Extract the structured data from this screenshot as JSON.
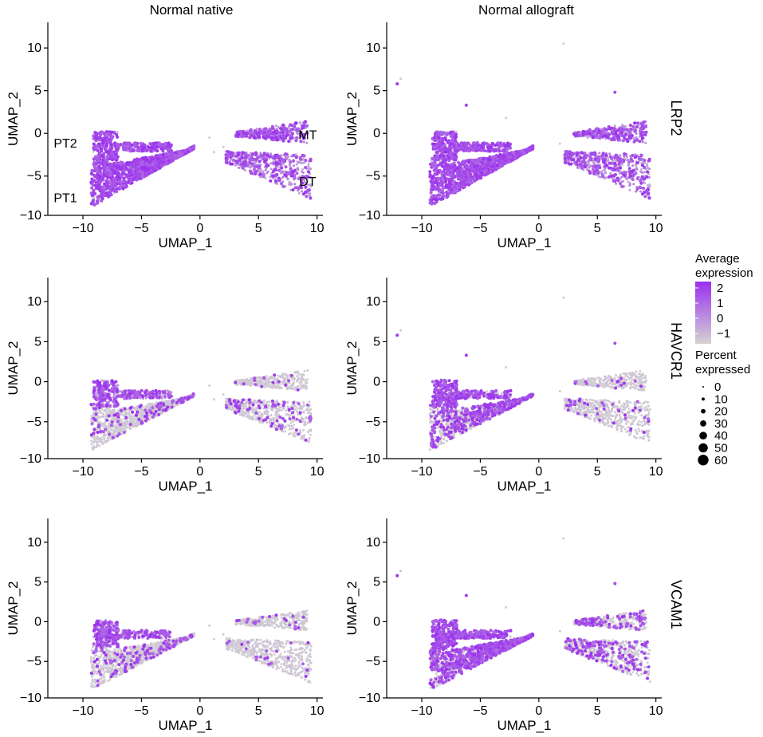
{
  "chart_data": {
    "type": "scatter",
    "kind": "UMAP feature plot grid",
    "columns": [
      "Normal native",
      "Normal allograft"
    ],
    "rows": [
      "LRP2",
      "HAVCR1",
      "VCAM1"
    ],
    "xlabel": "UMAP_1",
    "ylabel": "UMAP_2",
    "xlim": [
      -13,
      10.5
    ],
    "ylim": [
      -9.6,
      13
    ],
    "xticks": [
      -10,
      -5,
      0,
      5,
      10
    ],
    "yticks": [
      -10,
      -5,
      0,
      5,
      10
    ],
    "x_tick_labels": [
      "−10",
      "−5",
      "0",
      "5",
      "10"
    ],
    "y_tick_labels": [
      "−10",
      "−5",
      "0",
      "5",
      "10"
    ],
    "annotations": [
      {
        "panel": "LRP2 / Normal native",
        "text": "PT2",
        "x": -11.5,
        "y": -1.2
      },
      {
        "panel": "LRP2 / Normal native",
        "text": "PT1",
        "x": -11.5,
        "y": -7.6
      },
      {
        "panel": "LRP2 / Normal native",
        "text": "MT",
        "x": 9.2,
        "y": -0.2
      },
      {
        "panel": "LRP2 / Normal native",
        "text": "DT",
        "x": 9.2,
        "y": -5.7
      }
    ],
    "clusters": [
      {
        "name": "PT2",
        "x_range": [
          -9.2,
          -2.5
        ],
        "y_range": [
          -3.2,
          0.3
        ]
      },
      {
        "name": "PT1",
        "x_range": [
          -9.3,
          -0.5
        ],
        "y_range": [
          -8.7,
          -1.8
        ]
      },
      {
        "name": "MT",
        "x_range": [
          3.0,
          9.2
        ],
        "y_range": [
          -1.5,
          2.2
        ]
      },
      {
        "name": "DT",
        "x_range": [
          2.2,
          9.5
        ],
        "y_range": [
          -7.8,
          -2.0
        ]
      }
    ],
    "panels": [
      {
        "row": "LRP2",
        "column": "Normal native",
        "expr": {
          "PT2": 0.9,
          "PT1": 0.95,
          "MT": 0.55,
          "DT": 0.35
        }
      },
      {
        "row": "LRP2",
        "column": "Normal allograft",
        "expr": {
          "PT2": 0.9,
          "PT1": 0.95,
          "MT": 0.45,
          "DT": 0.4
        }
      },
      {
        "row": "HAVCR1",
        "column": "Normal native",
        "expr": {
          "PT2": 0.45,
          "PT1": 0.08,
          "MT": 0.04,
          "DT": 0.12
        }
      },
      {
        "row": "HAVCR1",
        "column": "Normal allograft",
        "expr": {
          "PT2": 0.7,
          "PT1": 0.3,
          "MT": 0.03,
          "DT": 0.07
        }
      },
      {
        "row": "VCAM1",
        "column": "Normal native",
        "expr": {
          "PT2": 0.5,
          "PT1": 0.1,
          "MT": 0.06,
          "DT": 0.05
        }
      },
      {
        "row": "VCAM1",
        "column": "Normal allograft",
        "expr": {
          "PT2": 0.85,
          "PT1": 0.6,
          "MT": 0.25,
          "DT": 0.3
        }
      }
    ],
    "colors": {
      "high": "#9b30ee",
      "low": "#d3d3d3"
    },
    "legend": {
      "position": "right",
      "color_title_line1": "Average",
      "color_title_line2": "expression",
      "color_ticks": [
        "2",
        "1",
        "0",
        "−1"
      ],
      "size_title_line1": "Percent",
      "size_title_line2": "expressed",
      "size_values": [
        "0",
        "10",
        "20",
        "30",
        "40",
        "50",
        "60"
      ]
    }
  }
}
